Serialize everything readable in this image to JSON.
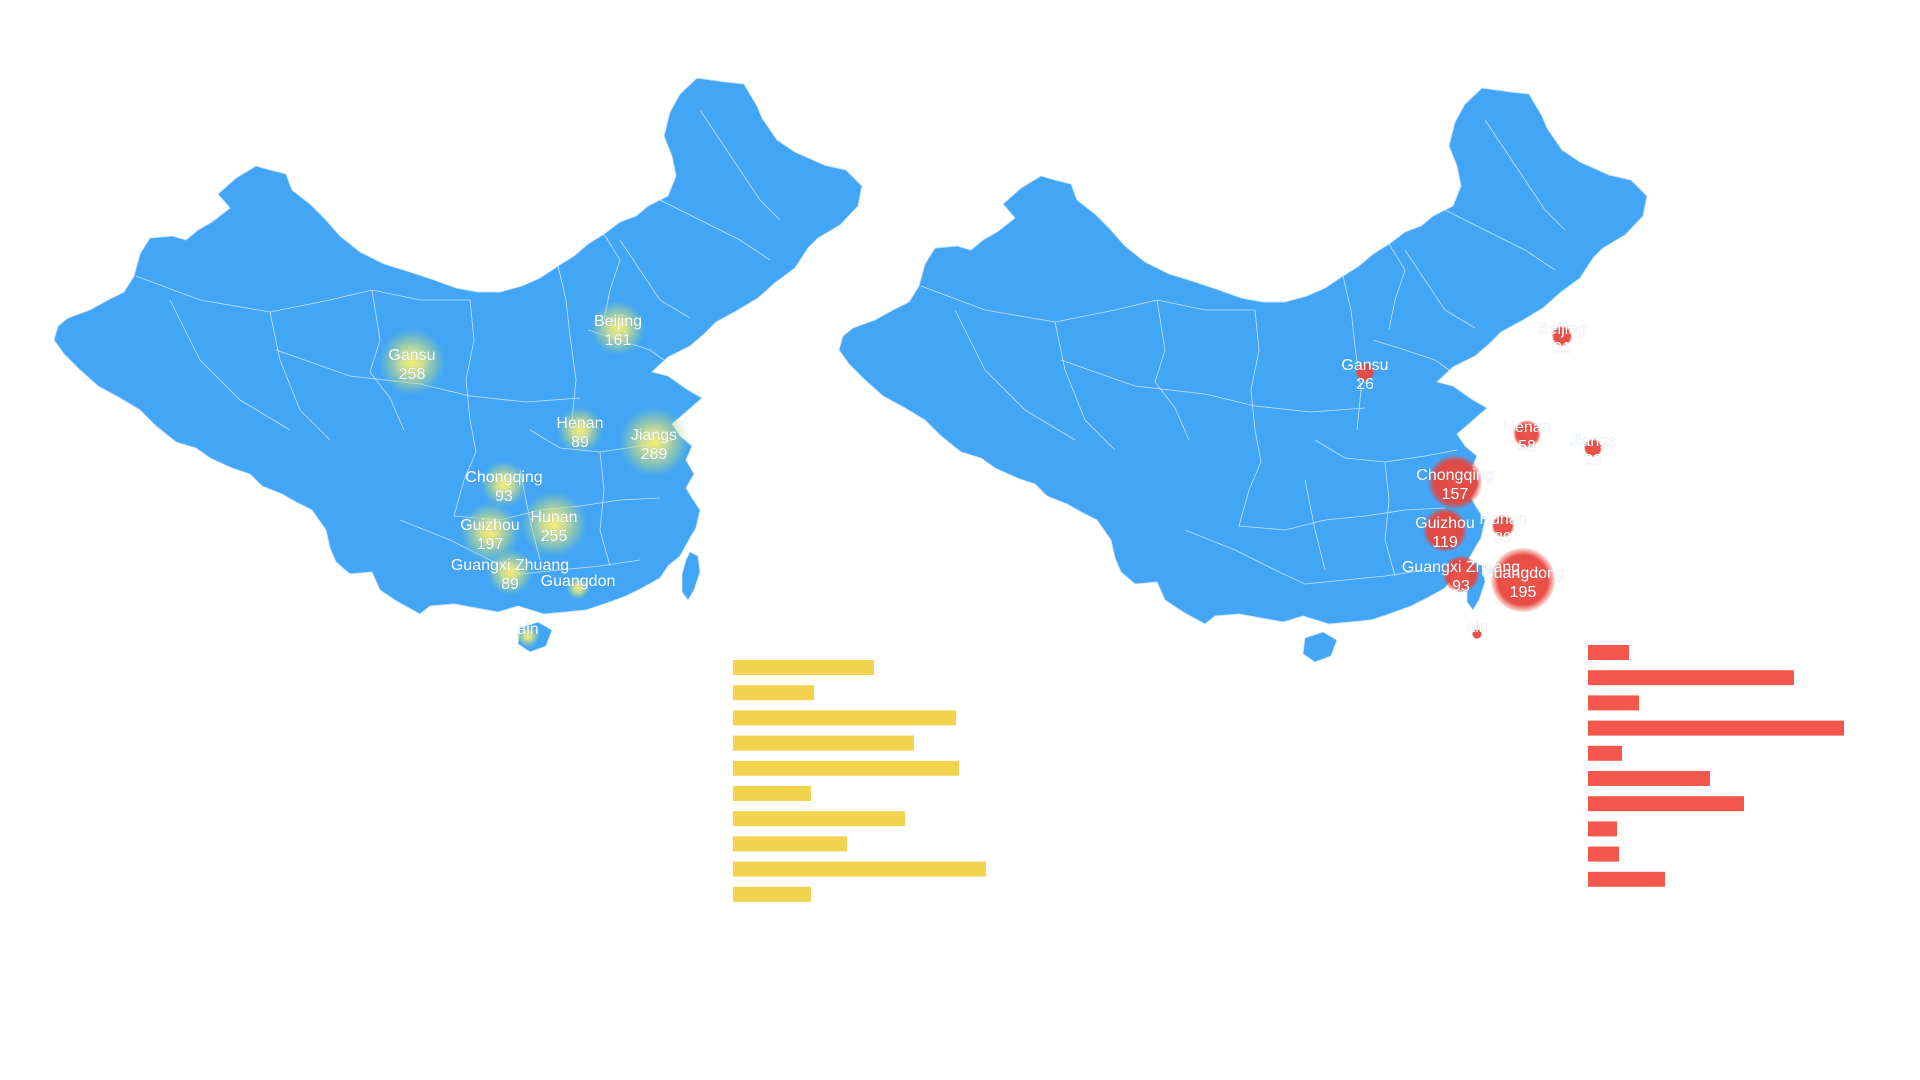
{
  "colors": {
    "land": "#42a5f5",
    "heat": "#f5d44f",
    "bubble": "#e8453c",
    "bar_left": "#f3d34d",
    "bar_right": "#f4574b"
  },
  "maps": [
    {
      "id": "left",
      "style": "heat",
      "points": [
        {
          "name": "Gansu",
          "value": 258
        },
        {
          "name": "Beijing",
          "value": 161
        },
        {
          "name": "Henan",
          "value": 89
        },
        {
          "name": "Jiangsu",
          "value": 289
        },
        {
          "name": "Chongqing",
          "value": 93
        },
        {
          "name": "Guizhou",
          "value": 197
        },
        {
          "name": "Hunan",
          "value": 255
        },
        {
          "name": "Guangxi Zhuang",
          "value": 89
        },
        {
          "name": "Guangdong",
          "value": null
        },
        {
          "name": "Hainan",
          "value": null
        }
      ],
      "bars": [
        141,
        81,
        223,
        181,
        226,
        78,
        172,
        114,
        253,
        78
      ]
    },
    {
      "id": "right",
      "style": "bubble",
      "points": [
        {
          "name": "Gansu",
          "value": 26
        },
        {
          "name": "Beijing",
          "value": 31
        },
        {
          "name": "Henan",
          "value": 58
        },
        {
          "name": "Jiangsu",
          "value": 23
        },
        {
          "name": "Chongqing",
          "value": 157
        },
        {
          "name": "Guizhou",
          "value": 119
        },
        {
          "name": "Hunan",
          "value": 39
        },
        {
          "name": "Guangxi Zhuang",
          "value": 93
        },
        {
          "name": "Guangdong",
          "value": 195
        },
        {
          "name": "Hainan",
          "value": null
        }
      ],
      "bars": [
        41,
        206,
        51,
        256,
        34,
        122,
        156,
        29,
        31,
        77
      ]
    }
  ]
}
